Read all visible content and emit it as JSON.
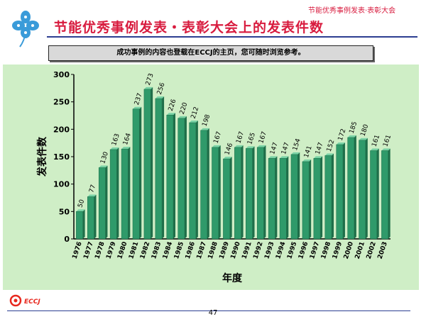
{
  "header": {
    "title": "节能优秀事例发表·表彰大会"
  },
  "main_title": "节能优秀事例发表・表彰大会上的发表件数",
  "notice": "成功事例的内容也登载在ECCJ的主页，您可随时浏览参考。",
  "footer": {
    "logo_text": "ECCJ",
    "page_number": "47"
  },
  "colors": {
    "accent_red": "#d81b3e",
    "bar_green": "#2f9a6a",
    "plot_bg": "#cfeec6",
    "rule_blue": "#2c3e91"
  },
  "chart_data": {
    "type": "bar",
    "title": "",
    "xlabel": "年度",
    "ylabel": "发表件数",
    "ylim": [
      0,
      300
    ],
    "yticks": [
      0,
      50,
      100,
      150,
      200,
      250,
      300
    ],
    "grid": false,
    "categories": [
      "1976",
      "1977",
      "1978",
      "1979",
      "1980",
      "1981",
      "1982",
      "1983",
      "1984",
      "1985",
      "1986",
      "1987",
      "1988",
      "1989",
      "1990",
      "1991",
      "1992",
      "1993",
      "1994",
      "1995",
      "1996",
      "1997",
      "1998",
      "1999",
      "2000",
      "2001",
      "2002",
      "2003"
    ],
    "values": [
      50,
      77,
      130,
      163,
      164,
      237,
      273,
      256,
      226,
      220,
      212,
      198,
      167,
      146,
      167,
      165,
      167,
      147,
      147,
      154,
      141,
      147,
      152,
      172,
      185,
      180,
      161,
      161
    ]
  }
}
